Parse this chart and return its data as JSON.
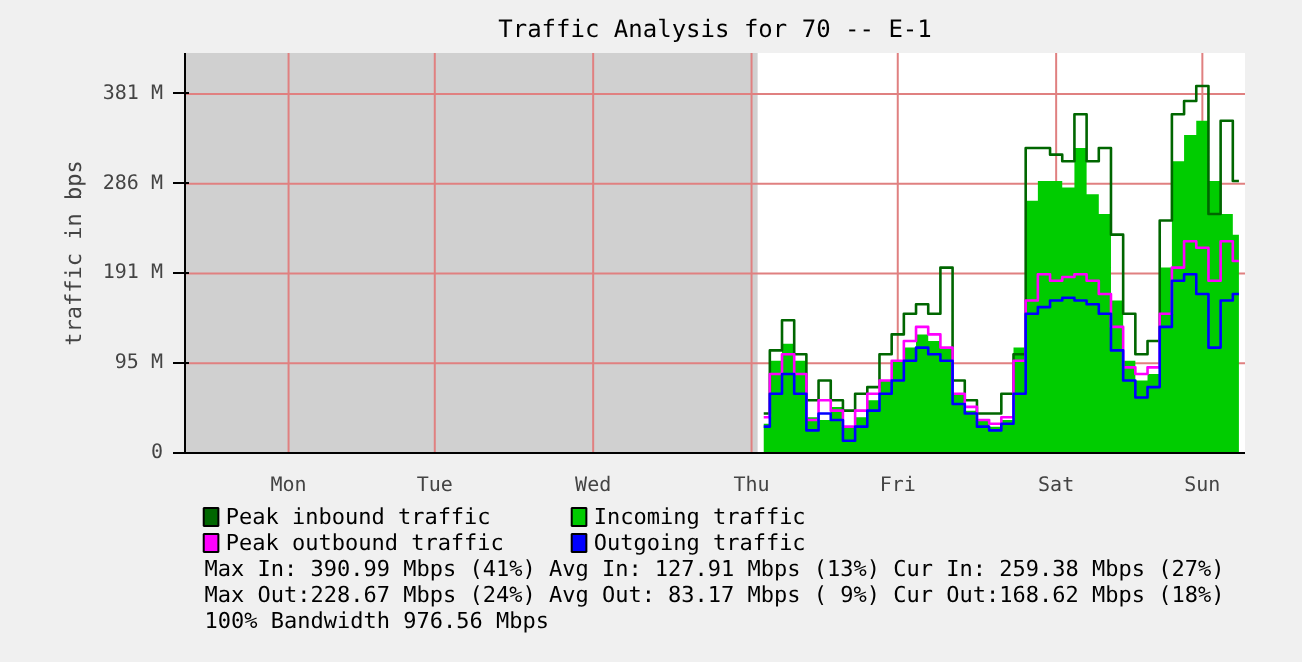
{
  "chart_data": {
    "type": "step",
    "title": "Traffic Analysis for 70 -- E-1",
    "ylabel": "traffic in bps",
    "categories": [
      null,
      null,
      null,
      null,
      null,
      null,
      null,
      null,
      "Mon",
      null,
      null,
      null,
      null,
      null,
      null,
      null,
      null,
      null,
      null,
      null,
      "Tue",
      null,
      null,
      null,
      null,
      null,
      null,
      null,
      null,
      null,
      null,
      null,
      null,
      "Wed",
      null,
      null,
      null,
      null,
      null,
      null,
      null,
      null,
      null,
      null,
      null,
      null,
      "Thu",
      null,
      null,
      null,
      null,
      null,
      null,
      null,
      null,
      null,
      null,
      null,
      "Fri",
      null,
      null,
      null,
      null,
      null,
      null,
      null,
      null,
      null,
      null,
      null,
      null,
      "Sat",
      null,
      null,
      null,
      null,
      null,
      null,
      null,
      null,
      null,
      null,
      null,
      "Sun",
      null,
      null,
      null
    ],
    "series": [
      {
        "name": "Peak inbound traffic",
        "color": "#006600",
        "values": [
          null,
          null,
          null,
          null,
          null,
          null,
          null,
          null,
          null,
          null,
          null,
          null,
          null,
          null,
          null,
          null,
          null,
          null,
          null,
          null,
          null,
          null,
          null,
          null,
          null,
          null,
          null,
          null,
          null,
          null,
          null,
          null,
          null,
          null,
          null,
          null,
          null,
          null,
          null,
          null,
          null,
          null,
          null,
          null,
          null,
          null,
          null,
          42,
          109,
          141,
          105,
          56,
          77,
          56,
          45,
          63,
          70,
          105,
          126,
          148,
          158,
          148,
          197,
          77,
          56,
          42,
          42,
          63,
          105,
          324,
          324,
          317,
          310,
          360,
          310,
          324,
          232,
          148,
          105,
          119,
          247,
          360,
          374,
          390,
          254,
          353,
          289
        ]
      },
      {
        "name": "Incoming traffic",
        "type": "area",
        "color": "#00cc00",
        "values": [
          null,
          null,
          null,
          null,
          null,
          null,
          null,
          null,
          null,
          null,
          null,
          null,
          null,
          null,
          null,
          null,
          null,
          null,
          null,
          null,
          null,
          null,
          null,
          null,
          null,
          null,
          null,
          null,
          null,
          null,
          null,
          null,
          null,
          null,
          null,
          null,
          null,
          null,
          null,
          null,
          null,
          null,
          null,
          null,
          null,
          null,
          null,
          31,
          98,
          116,
          98,
          38,
          35,
          49,
          28,
          38,
          56,
          77,
          98,
          112,
          126,
          119,
          112,
          63,
          45,
          35,
          28,
          35,
          112,
          268,
          289,
          289,
          282,
          324,
          275,
          254,
          162,
          98,
          77,
          84,
          197,
          310,
          338,
          353,
          289,
          254,
          232
        ]
      },
      {
        "name": "Peak outbound traffic",
        "color": "#ff00ff",
        "values": [
          null,
          null,
          null,
          null,
          null,
          null,
          null,
          null,
          null,
          null,
          null,
          null,
          null,
          null,
          null,
          null,
          null,
          null,
          null,
          null,
          null,
          null,
          null,
          null,
          null,
          null,
          null,
          null,
          null,
          null,
          null,
          null,
          null,
          null,
          null,
          null,
          null,
          null,
          null,
          null,
          null,
          null,
          null,
          null,
          null,
          null,
          null,
          38,
          84,
          105,
          84,
          35,
          56,
          45,
          28,
          45,
          63,
          77,
          98,
          119,
          134,
          126,
          112,
          63,
          49,
          35,
          31,
          38,
          98,
          162,
          190,
          183,
          187,
          190,
          183,
          169,
          134,
          91,
          84,
          91,
          148,
          197,
          225,
          218,
          183,
          225,
          204
        ]
      },
      {
        "name": "Outgoing traffic",
        "color": "#0000ff",
        "values": [
          null,
          null,
          null,
          null,
          null,
          null,
          null,
          null,
          null,
          null,
          null,
          null,
          null,
          null,
          null,
          null,
          null,
          null,
          null,
          null,
          null,
          null,
          null,
          null,
          null,
          null,
          null,
          null,
          null,
          null,
          null,
          null,
          null,
          null,
          null,
          null,
          null,
          null,
          null,
          null,
          null,
          null,
          null,
          null,
          null,
          null,
          null,
          28,
          63,
          84,
          63,
          24,
          42,
          35,
          13,
          28,
          45,
          63,
          77,
          98,
          112,
          105,
          98,
          52,
          42,
          28,
          24,
          31,
          63,
          148,
          155,
          162,
          165,
          162,
          158,
          148,
          109,
          77,
          59,
          70,
          134,
          183,
          190,
          169,
          112,
          162,
          169
        ]
      }
    ],
    "ylim": [
      0,
      425
    ],
    "yticks": [
      0,
      {
        "value": 95.37,
        "label": "95 M"
      },
      {
        "value": 190.73,
        "label": "191 M"
      },
      {
        "value": 286.1,
        "label": "286 M"
      },
      {
        "value": 381.47,
        "label": "381 M"
      }
    ],
    "grid": true,
    "legend": "bottom",
    "annotations": [
      "Max In: 390.99 Mbps (41%)  Avg In: 127.91 Mbps (13%)  Cur In: 259.38 Mbps (27%)",
      "Max Out:228.67 Mbps (24%)  Avg Out: 83.17 Mbps ( 9%)  Cur Out:168.62 Mbps (18%)",
      "100% Bandwidth 976.56 Mbps"
    ]
  }
}
